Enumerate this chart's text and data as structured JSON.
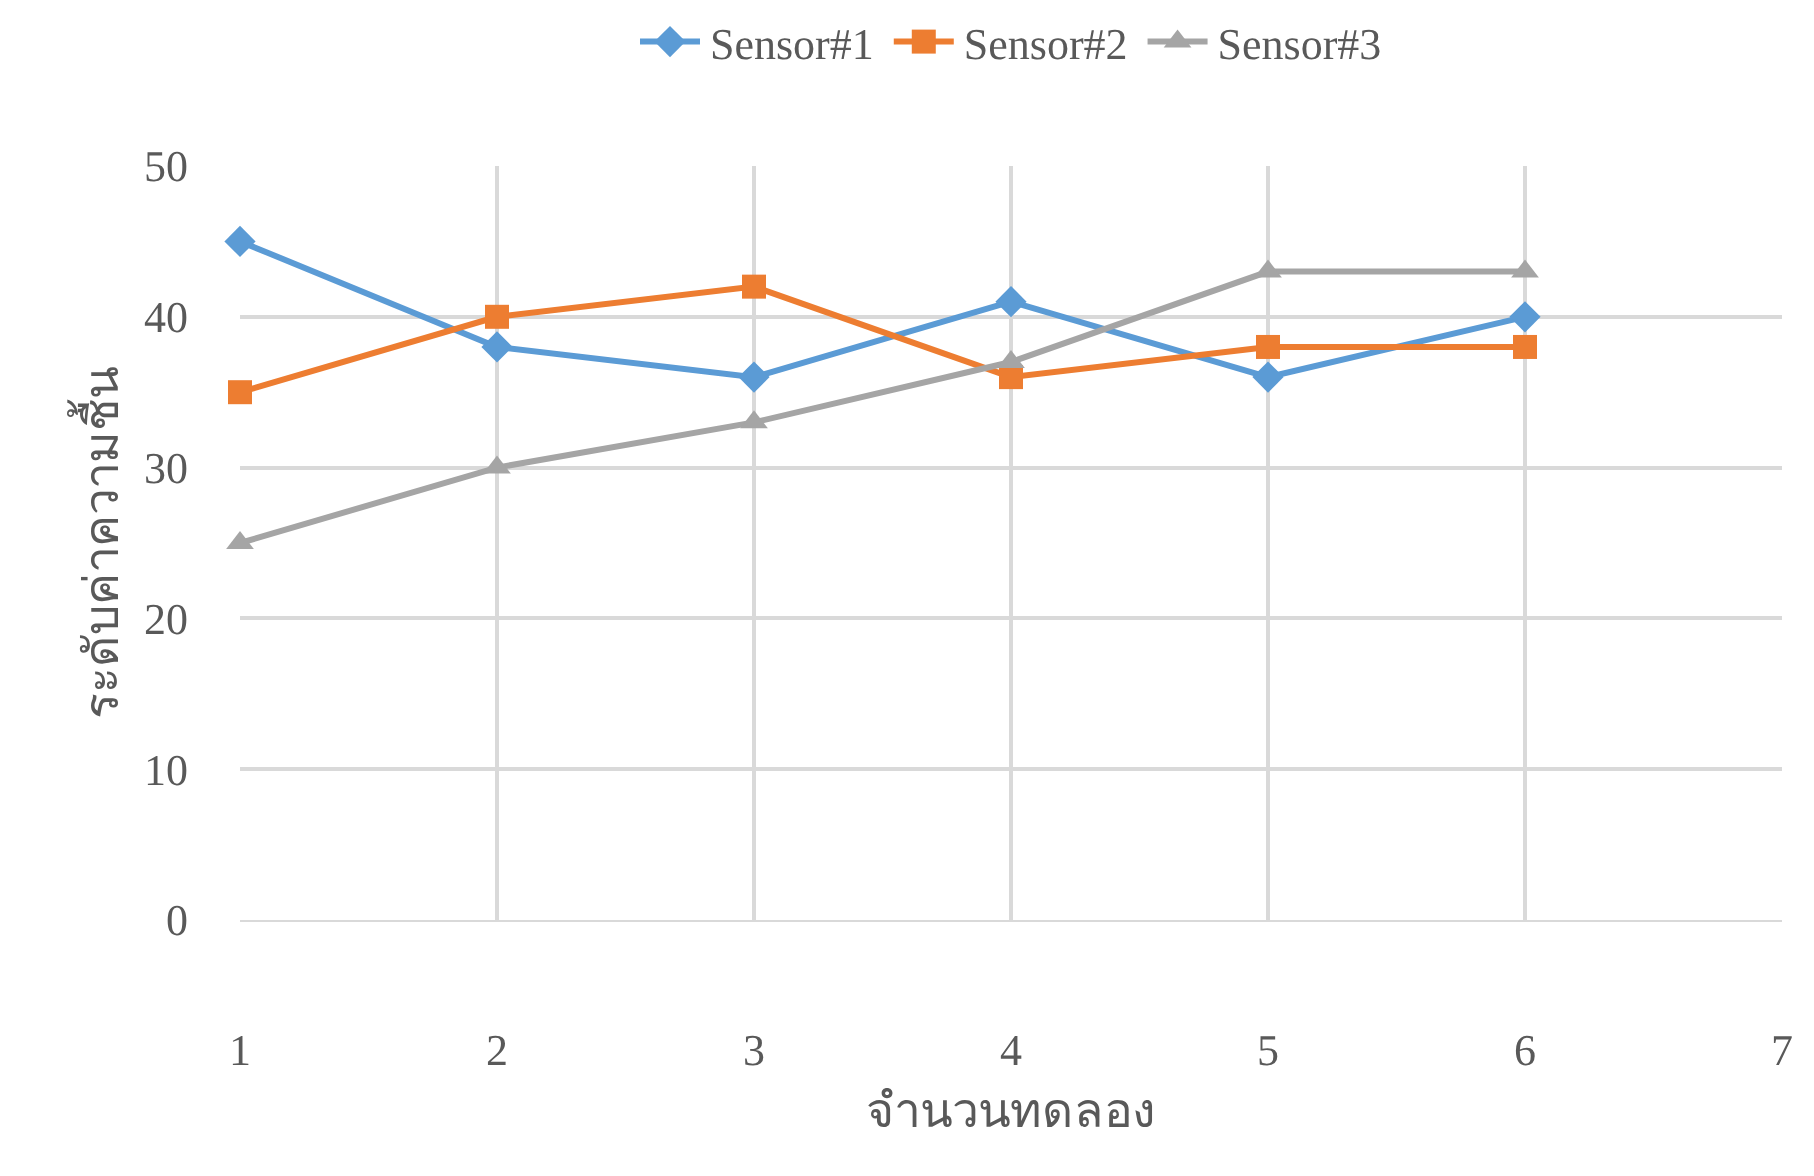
{
  "chart_data": {
    "type": "line",
    "xlabel": "จำนวนทดลอง",
    "ylabel": "ระดับค่าความชื้น",
    "x": [
      1,
      2,
      3,
      4,
      5,
      6
    ],
    "series": [
      {
        "name": "Sensor#1",
        "color": "#5b9bd5",
        "marker": "diamond",
        "values": [
          45,
          38,
          36,
          41,
          36,
          40
        ]
      },
      {
        "name": "Sensor#2",
        "color": "#ed7d31",
        "marker": "square",
        "values": [
          35,
          40,
          42,
          36,
          38,
          38
        ]
      },
      {
        "name": "Sensor#3",
        "color": "#a5a5a5",
        "marker": "triangle",
        "values": [
          25,
          30,
          33,
          37,
          43,
          43
        ]
      }
    ],
    "xlim": [
      1,
      7
    ],
    "xticks": [
      1,
      2,
      3,
      4,
      5,
      6,
      7
    ],
    "ylim": [
      0,
      50
    ],
    "yticks": [
      0,
      10,
      20,
      30,
      40,
      50
    ],
    "grid": true,
    "legend": "top",
    "line_style": "solid"
  }
}
